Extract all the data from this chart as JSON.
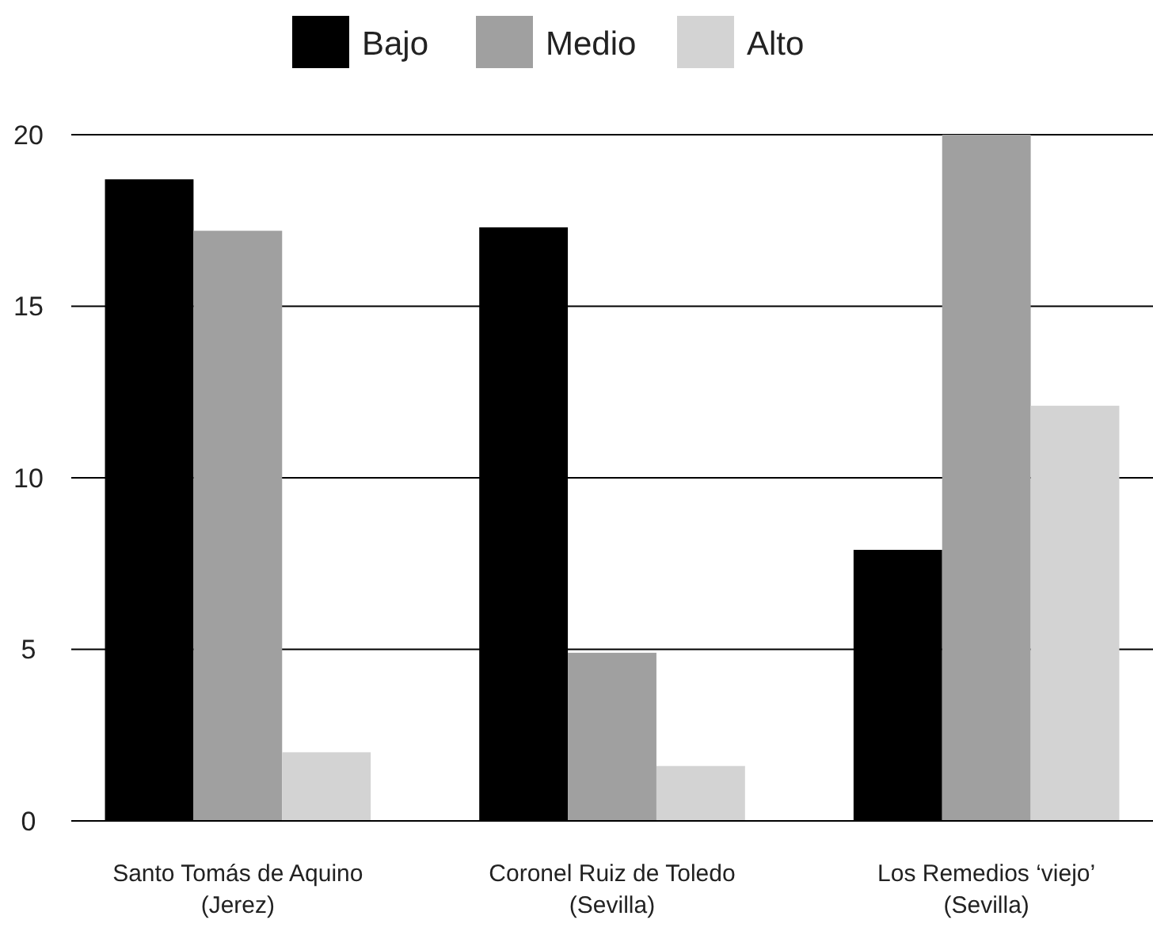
{
  "chart_data": {
    "type": "bar",
    "categories": [
      "Santo Tomás de Aquino\n(Jerez)",
      "Coronel Ruiz de Toledo\n(Sevilla)",
      "Los Remedios ‘viejo’\n(Sevilla)"
    ],
    "series": [
      {
        "name": "Bajo",
        "color": "#000000",
        "values": [
          18.7,
          17.3,
          7.9
        ]
      },
      {
        "name": "Medio",
        "color": "#a0a0a0",
        "values": [
          17.2,
          4.9,
          20
        ]
      },
      {
        "name": "Alto",
        "color": "#d3d3d3",
        "values": [
          2.0,
          1.6,
          12.1
        ]
      }
    ],
    "ylim": [
      0,
      20
    ],
    "yticks": [
      0,
      5,
      10,
      15,
      20
    ],
    "grid": "y",
    "legend": "top"
  }
}
